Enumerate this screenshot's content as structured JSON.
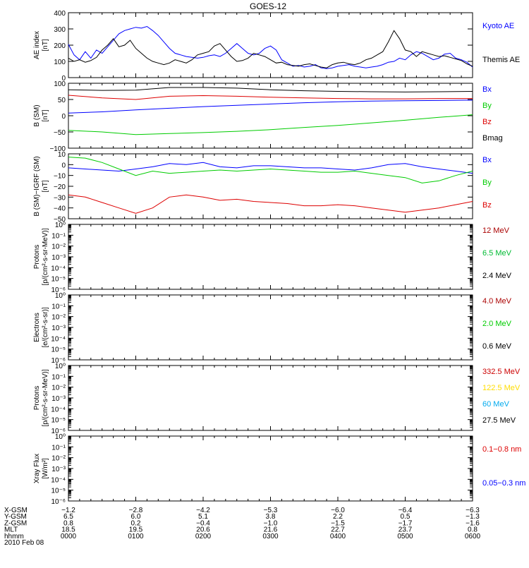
{
  "title": "GOES-12",
  "chart_data": [
    {
      "id": "ae",
      "type": "line",
      "ylabel": [
        "AE index",
        "[nT]"
      ],
      "ylim": [
        0,
        400
      ],
      "yticks": [
        "0",
        "100",
        "200",
        "300",
        "400"
      ],
      "legend": [
        {
          "name": "Kyoto AE",
          "color": "#0000ff"
        },
        {
          "name": "Themis AE",
          "color": "#000000"
        }
      ],
      "series": [
        {
          "name": "Kyoto AE",
          "color": "#0000ff",
          "x": [
            0,
            5,
            10,
            15,
            20,
            25,
            30,
            35,
            40,
            45,
            50,
            55,
            60,
            65,
            70,
            75,
            80,
            85,
            90,
            95,
            100,
            105,
            110,
            115,
            120,
            125,
            130,
            135,
            140,
            145,
            150,
            155,
            160,
            165,
            170,
            175,
            180,
            185,
            190,
            195,
            200,
            205,
            210,
            215,
            220,
            225,
            230,
            235,
            240,
            245,
            250,
            255,
            260,
            265,
            270,
            275,
            280,
            285,
            290,
            295,
            300,
            305,
            310,
            315,
            320,
            325,
            330,
            335,
            340,
            345,
            350,
            355,
            360
          ],
          "y": [
            205,
            140,
            110,
            160,
            120,
            170,
            150,
            190,
            230,
            270,
            290,
            300,
            310,
            305,
            315,
            290,
            260,
            220,
            180,
            150,
            140,
            130,
            125,
            120,
            125,
            135,
            140,
            130,
            150,
            180,
            210,
            180,
            150,
            140,
            150,
            180,
            195,
            170,
            110,
            90,
            70,
            75,
            65,
            70,
            80,
            60,
            55,
            60,
            70,
            75,
            80,
            70,
            65,
            60,
            65,
            70,
            80,
            95,
            100,
            120,
            110,
            140,
            160,
            150,
            130,
            110,
            120,
            145,
            150,
            120,
            110,
            95,
            65
          ]
        },
        {
          "name": "Themis AE",
          "color": "#000000",
          "x": [
            0,
            5,
            10,
            15,
            20,
            25,
            30,
            35,
            40,
            45,
            50,
            55,
            60,
            65,
            70,
            75,
            80,
            85,
            90,
            95,
            100,
            105,
            110,
            115,
            120,
            125,
            130,
            135,
            140,
            145,
            150,
            155,
            160,
            165,
            170,
            175,
            180,
            185,
            190,
            195,
            200,
            205,
            210,
            215,
            220,
            225,
            230,
            235,
            240,
            245,
            250,
            255,
            260,
            265,
            270,
            275,
            280,
            285,
            290,
            295,
            300,
            305,
            310,
            315,
            320,
            325,
            330,
            335,
            340,
            345,
            350,
            355,
            360
          ],
          "y": [
            120,
            100,
            110,
            95,
            105,
            125,
            170,
            200,
            240,
            190,
            200,
            230,
            180,
            150,
            120,
            100,
            90,
            80,
            90,
            110,
            100,
            90,
            110,
            140,
            150,
            160,
            195,
            210,
            170,
            130,
            100,
            105,
            120,
            150,
            140,
            130,
            110,
            90,
            95,
            80,
            75,
            70,
            80,
            85,
            75,
            65,
            60,
            80,
            90,
            95,
            85,
            80,
            90,
            110,
            120,
            140,
            160,
            220,
            290,
            240,
            170,
            160,
            130,
            160,
            150,
            140,
            130,
            135,
            125,
            115,
            105,
            85,
            70
          ]
        }
      ]
    },
    {
      "id": "bsm",
      "type": "line",
      "ylabel": [
        "B (SM)",
        "[nT]"
      ],
      "ylim": [
        -100,
        100
      ],
      "yticks": [
        "−100",
        "−50",
        "0",
        "50",
        "100"
      ],
      "legend": [
        {
          "name": "Bx",
          "color": "#0000ff"
        },
        {
          "name": "By",
          "color": "#00cc00"
        },
        {
          "name": "Bz",
          "color": "#dd0000"
        },
        {
          "name": "Bmag",
          "color": "#000000"
        }
      ],
      "series": [
        {
          "name": "Bx",
          "color": "#0000ff",
          "x": [
            0,
            30,
            60,
            90,
            120,
            150,
            180,
            210,
            240,
            270,
            300,
            330,
            360
          ],
          "y": [
            8,
            12,
            18,
            23,
            28,
            32,
            36,
            40,
            43,
            45,
            46,
            47,
            48
          ]
        },
        {
          "name": "By",
          "color": "#00cc00",
          "x": [
            0,
            30,
            60,
            90,
            120,
            150,
            180,
            210,
            240,
            270,
            300,
            330,
            360
          ],
          "y": [
            -45,
            -50,
            -58,
            -55,
            -52,
            -48,
            -43,
            -36,
            -30,
            -22,
            -14,
            -5,
            3
          ]
        },
        {
          "name": "Bz",
          "color": "#dd0000",
          "x": [
            0,
            30,
            60,
            90,
            120,
            150,
            180,
            210,
            240,
            270,
            300,
            330,
            360
          ],
          "y": [
            63,
            55,
            50,
            60,
            62,
            60,
            57,
            55,
            53,
            52,
            52,
            53,
            53
          ]
        },
        {
          "name": "Bmag",
          "color": "#000000",
          "x": [
            0,
            30,
            60,
            90,
            120,
            150,
            180,
            210,
            240,
            270,
            300,
            330,
            360
          ],
          "y": [
            80,
            78,
            79,
            87,
            87,
            85,
            80,
            77,
            75,
            74,
            73,
            74,
            75
          ]
        }
      ]
    },
    {
      "id": "bdiff",
      "type": "line",
      "ylabel": [
        "B (SM)−IGRF (SM)",
        "[nT]"
      ],
      "ylim": [
        -50,
        10
      ],
      "yticks": [
        "−50",
        "−40",
        "−30",
        "−20",
        "−10",
        "0",
        "10"
      ],
      "legend": [
        {
          "name": "Bx",
          "color": "#0000ff"
        },
        {
          "name": "By",
          "color": "#00cc00"
        },
        {
          "name": "Bz",
          "color": "#dd0000"
        }
      ],
      "series": [
        {
          "name": "Bx",
          "color": "#0000ff",
          "x": [
            0,
            15,
            30,
            45,
            60,
            75,
            90,
            105,
            120,
            135,
            150,
            165,
            180,
            195,
            210,
            225,
            240,
            255,
            270,
            285,
            300,
            315,
            330,
            345,
            360
          ],
          "y": [
            -3,
            -4,
            -5,
            -6,
            -4,
            -2,
            1,
            0,
            2,
            -2,
            -3,
            -1,
            -1,
            -2,
            -3,
            -3,
            -4,
            -5,
            -3,
            0,
            1,
            -2,
            -4,
            -6,
            -8
          ]
        },
        {
          "name": "By",
          "color": "#00cc00",
          "x": [
            0,
            15,
            30,
            45,
            60,
            75,
            90,
            105,
            120,
            135,
            150,
            165,
            180,
            195,
            210,
            225,
            240,
            255,
            270,
            285,
            300,
            315,
            330,
            345,
            360
          ],
          "y": [
            7,
            6,
            2,
            -4,
            -10,
            -6,
            -8,
            -7,
            -6,
            -5,
            -6,
            -5,
            -4,
            -5,
            -6,
            -7,
            -7,
            -6,
            -8,
            -10,
            -12,
            -17,
            -15,
            -10,
            -6
          ]
        },
        {
          "name": "Bz",
          "color": "#dd0000",
          "x": [
            0,
            15,
            30,
            45,
            60,
            75,
            90,
            105,
            120,
            135,
            150,
            165,
            180,
            195,
            210,
            225,
            240,
            255,
            270,
            285,
            300,
            315,
            330,
            345,
            360
          ],
          "y": [
            -28,
            -30,
            -35,
            -40,
            -45,
            -40,
            -30,
            -28,
            -30,
            -33,
            -32,
            -34,
            -35,
            -36,
            -38,
            -38,
            -37,
            -38,
            -40,
            -42,
            -44,
            -42,
            -40,
            -37,
            -34
          ]
        }
      ]
    },
    {
      "id": "protons1",
      "type": "line",
      "scale": "log",
      "ylabel": [
        "Protons",
        "[p/(cm²-s-sr-MeV)]"
      ],
      "ylim": [
        1e-06,
        1
      ],
      "yticks": [
        "10⁰",
        "10⁻¹",
        "10⁻²",
        "10⁻³",
        "10⁻⁴",
        "10⁻⁵",
        "10⁻⁶"
      ],
      "legend": [
        {
          "name": "12 MeV",
          "color": "#aa0000"
        },
        {
          "name": "6.5 MeV",
          "color": "#00bb33"
        },
        {
          "name": "2.4 MeV",
          "color": "#000000"
        }
      ],
      "series": []
    },
    {
      "id": "electrons",
      "type": "line",
      "scale": "log",
      "ylabel": [
        "Electrons",
        "[e/(cm²-s-sr)]"
      ],
      "ylim": [
        1e-06,
        1
      ],
      "yticks": [
        "10⁰",
        "10⁻¹",
        "10⁻²",
        "10⁻³",
        "10⁻⁴",
        "10⁻⁵",
        "10⁻⁶"
      ],
      "legend": [
        {
          "name": "4.0 MeV",
          "color": "#aa0000"
        },
        {
          "name": "2.0 MeV",
          "color": "#00cc00"
        },
        {
          "name": "0.6 MeV",
          "color": "#000000"
        }
      ],
      "series": []
    },
    {
      "id": "protons2",
      "type": "line",
      "scale": "log",
      "ylabel": [
        "Protons",
        "[p/(cm²-s-sr-MeV)]"
      ],
      "ylim": [
        1e-06,
        1
      ],
      "yticks": [
        "10⁰",
        "10⁻¹",
        "10⁻²",
        "10⁻³",
        "10⁻⁴",
        "10⁻⁵",
        "10⁻⁶"
      ],
      "legend": [
        {
          "name": "332.5 MeV",
          "color": "#cc0000"
        },
        {
          "name": "122.5 MeV",
          "color": "#ffdd00"
        },
        {
          "name": "60 MeV",
          "color": "#00aaee"
        },
        {
          "name": "27.5 MeV",
          "color": "#000000"
        }
      ],
      "series": []
    },
    {
      "id": "xray",
      "type": "line",
      "scale": "log",
      "ylabel": [
        "Xray  Flux",
        "[W/m²]"
      ],
      "ylim": [
        1e-06,
        1
      ],
      "yticks": [
        "10⁰",
        "10⁻¹",
        "10⁻²",
        "10⁻³",
        "10⁻⁴",
        "10⁻⁵",
        "10⁻⁶"
      ],
      "legend": [
        {
          "name": "0.1−0.8 nm",
          "color": "#dd0000"
        },
        {
          "name": "0.05−0.3 nm",
          "color": "#0000ff"
        }
      ],
      "series": []
    }
  ],
  "orbit_table": {
    "rows": [
      {
        "label": "X-GSM",
        "values": [
          "−1.2",
          "−2.8",
          "−4.2",
          "−5.3",
          "−6.0",
          "−6.4",
          "−6.3"
        ]
      },
      {
        "label": "Y-GSM",
        "values": [
          "6.5",
          "6.0",
          "5.1",
          "3.8",
          "2.2",
          "0.5",
          "−1.3"
        ]
      },
      {
        "label": "Z-GSM",
        "values": [
          "0.8",
          "0.2",
          "−0.4",
          "−1.0",
          "−1.5",
          "−1.7",
          "−1.6"
        ]
      },
      {
        "label": "MLT",
        "values": [
          "18.5",
          "19.5",
          "20.6",
          "21.6",
          "22.7",
          "23.7",
          "0.8"
        ]
      },
      {
        "label": "hhmm",
        "values": [
          "0000",
          "0100",
          "0200",
          "0300",
          "0400",
          "0500",
          "0600"
        ]
      }
    ],
    "date": "2010 Feb 08"
  }
}
